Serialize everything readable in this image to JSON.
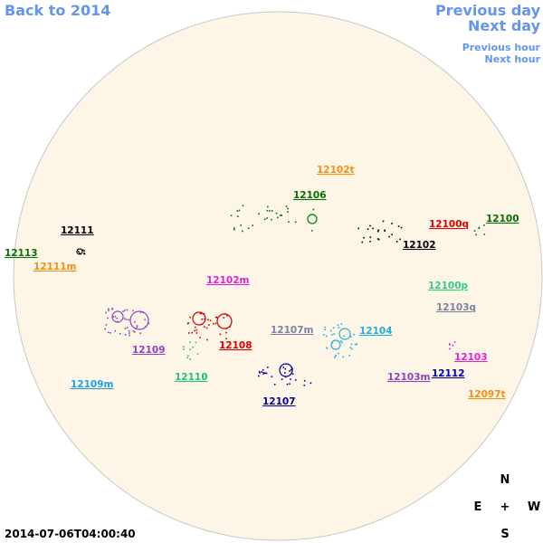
{
  "navigation": {
    "back": "Back to 2014",
    "previous_day": "Previous day",
    "next_day": "Next day",
    "previous_hour": "Previous hour",
    "next_hour": "Next hour"
  },
  "regions": [
    "12102t",
    "12106",
    "12111",
    "12100q",
    "12100",
    "12113",
    "12102",
    "12111m",
    "12102m",
    "12100p",
    "12103q",
    "12107m",
    "12104",
    "12108",
    "12109",
    "12103",
    "12110",
    "12103m",
    "12112",
    "12109m",
    "12097t",
    "12107"
  ],
  "compass": {
    "north": "N",
    "east": "E",
    "center": "+",
    "west": "W",
    "south": "S"
  },
  "timestamp": "2014-07-06T04:00:40"
}
